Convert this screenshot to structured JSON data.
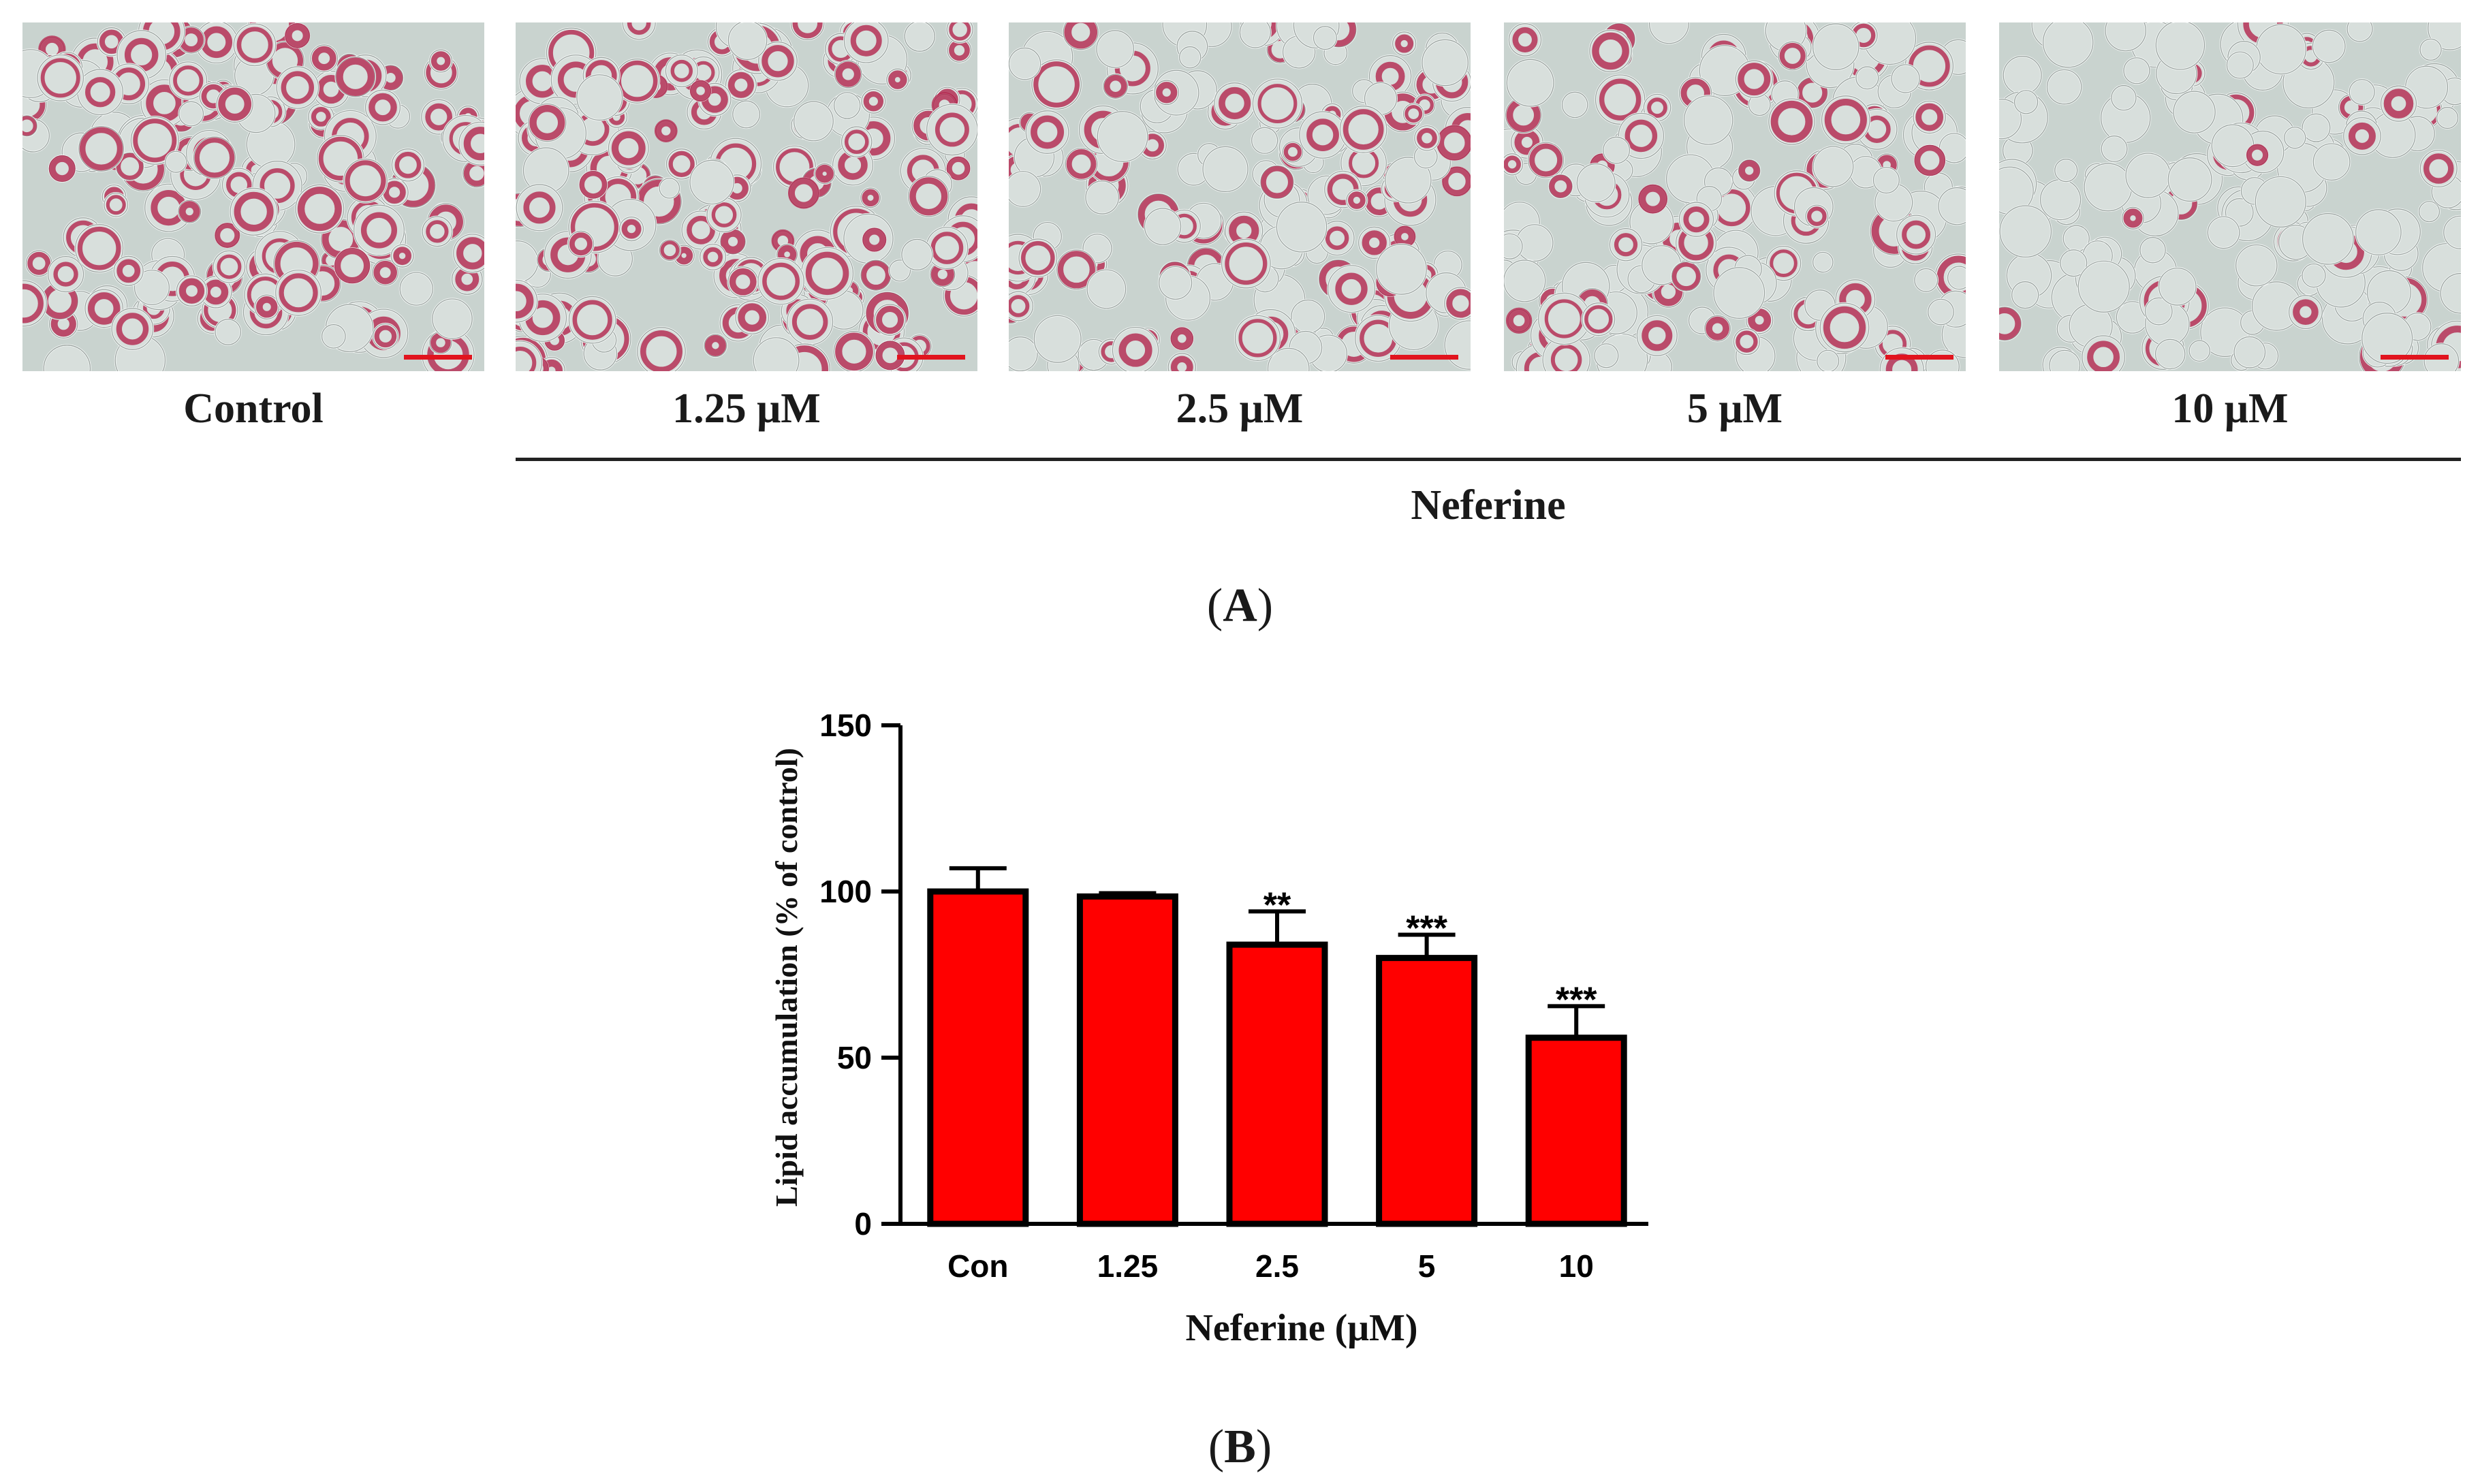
{
  "panel_a": {
    "label": "A",
    "images": [
      {
        "label": "Control",
        "stain": 0.85
      },
      {
        "label": "1.25 μM",
        "stain": 0.8
      },
      {
        "label": "2.5 μM",
        "stain": 0.6
      },
      {
        "label": "5 μM",
        "stain": 0.45
      },
      {
        "label": "10 μM",
        "stain": 0.15
      }
    ],
    "group_label": "Neferine"
  },
  "panel_b": {
    "label": "B"
  },
  "chart_data": {
    "type": "bar",
    "categories": [
      "Con",
      "1.25",
      "2.5",
      "5",
      "10"
    ],
    "values": [
      100,
      98.5,
      84,
      80,
      56
    ],
    "errors": [
      7,
      1,
      10,
      7,
      9.5
    ],
    "significance": [
      "",
      "",
      "**",
      "***",
      "***"
    ],
    "xlabel": "Neferine (μM)",
    "ylabel": "Lipid accumulation (% of control)",
    "ylim": [
      0,
      150
    ],
    "yticks": [
      0,
      50,
      100,
      150
    ],
    "bar_color": "#ff0000",
    "edge_color": "#000000",
    "grid": false
  }
}
